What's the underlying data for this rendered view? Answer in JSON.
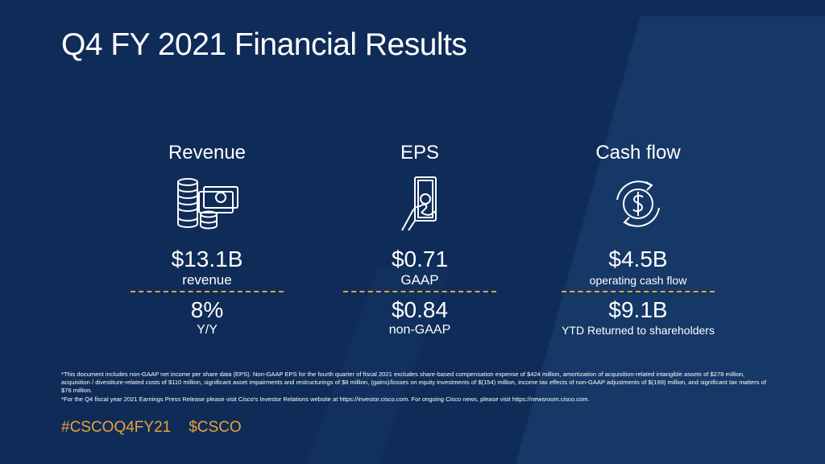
{
  "slide": {
    "title": "Q4 FY 2021 Financial Results",
    "colors": {
      "background": "#0f2c58",
      "accent": "#e8a33a",
      "text": "#ffffff"
    }
  },
  "metrics": [
    {
      "heading": "Revenue",
      "icon": "coins-cash-icon",
      "primary_value": "$13.1B",
      "primary_label": "revenue",
      "secondary_value": "8%",
      "secondary_label": "Y/Y"
    },
    {
      "heading": "EPS",
      "icon": "hand-money-icon",
      "primary_value": "$0.71",
      "primary_label": "GAAP",
      "secondary_value": "$0.84",
      "secondary_label": "non-GAAP"
    },
    {
      "heading": "Cash flow",
      "icon": "dollar-cycle-icon",
      "primary_value": "$4.5B",
      "primary_label": "operating cash flow",
      "secondary_value": "$9.1B",
      "secondary_label": "YTD Returned to shareholders"
    }
  ],
  "footnotes": [
    "*This document includes non-GAAP net income per share data (EPS). Non-GAAP EPS for the fourth quarter of fiscal 2021 excludes share-based compensation expense of $424 million, amortization of acquisition-related intangible assets of $278 million, acquisition / divestiture-related costs of $110 million, significant asset impairments and restructurings of $8 million, (gains)/losses on equity investments of $(154) million, income tax effects of non-GAAP adjustments of $(199) million, and significant tax matters of $76 million.",
    "*For the Q4 fiscal year 2021 Earnings Press Release please visit Cisco's Investor Relations website at https://investor.cisco.com. For ongoing Cisco news, please visit https://newsroom.cisco.com."
  ],
  "hashtags": [
    "#CSCOQ4FY21",
    "$CSCO"
  ]
}
